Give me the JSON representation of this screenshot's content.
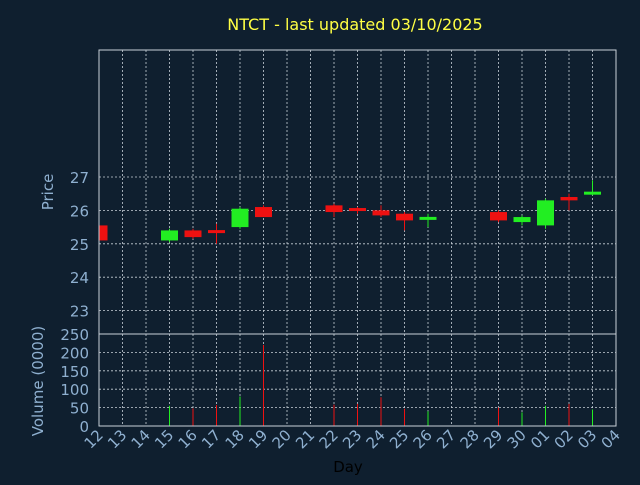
{
  "colors": {
    "background": "#0f1f2f",
    "title": "#ffff44",
    "axis_text": "#8fb0d0",
    "frame": "#c8d0d8",
    "grid": "#c8d0d8",
    "up": "#22ee22",
    "down": "#ee1111"
  },
  "chart_data": {
    "type": "candlestick",
    "title": "NTCT - last updated 03/10/2025",
    "xlabel": "Day",
    "price": {
      "ylabel": "Price",
      "ylim": [
        22.3,
        30.8
      ],
      "yticks": [
        23,
        24,
        25,
        26,
        27
      ]
    },
    "volume": {
      "ylabel": "Volume (0000)",
      "ylim": [
        0,
        250
      ],
      "yticks": [
        0,
        50,
        100,
        150,
        200,
        250
      ]
    },
    "x_tick_labels": [
      "12",
      "13",
      "14",
      "15",
      "16",
      "17",
      "18",
      "19",
      "20",
      "21",
      "22",
      "23",
      "24",
      "25",
      "26",
      "27",
      "28",
      "29",
      "30",
      "01",
      "02",
      "03",
      "04"
    ],
    "grid": true,
    "candles": [
      {
        "x": 0,
        "open": 25.55,
        "close": 25.1,
        "high": 25.6,
        "low": 25.1,
        "volume": 0
      },
      {
        "x": 3,
        "open": 25.1,
        "close": 25.4,
        "high": 25.45,
        "low": 25.05,
        "volume": 55
      },
      {
        "x": 4,
        "open": 25.4,
        "close": 25.2,
        "high": 25.45,
        "low": 25.15,
        "volume": 48
      },
      {
        "x": 5,
        "open": 25.38,
        "close": 25.35,
        "high": 25.6,
        "low": 25.0,
        "volume": 57
      },
      {
        "x": 6,
        "open": 25.5,
        "close": 26.05,
        "high": 26.1,
        "low": 25.45,
        "volume": 80
      },
      {
        "x": 7,
        "open": 26.1,
        "close": 25.8,
        "high": 26.15,
        "low": 25.8,
        "volume": 220
      },
      {
        "x": 10,
        "open": 26.15,
        "close": 25.95,
        "high": 26.2,
        "low": 25.8,
        "volume": 58
      },
      {
        "x": 11,
        "open": 26.05,
        "close": 26.0,
        "high": 26.1,
        "low": 25.9,
        "volume": 60
      },
      {
        "x": 12,
        "open": 26.0,
        "close": 25.85,
        "high": 26.15,
        "low": 25.8,
        "volume": 78
      },
      {
        "x": 13,
        "open": 25.9,
        "close": 25.7,
        "high": 25.95,
        "low": 25.4,
        "volume": 47
      },
      {
        "x": 14,
        "open": 25.72,
        "close": 25.8,
        "high": 25.9,
        "low": 25.5,
        "volume": 40
      },
      {
        "x": 17,
        "open": 25.95,
        "close": 25.7,
        "high": 26.0,
        "low": 25.65,
        "volume": 50
      },
      {
        "x": 18,
        "open": 25.65,
        "close": 25.8,
        "high": 25.85,
        "low": 25.55,
        "volume": 37
      },
      {
        "x": 19,
        "open": 25.55,
        "close": 26.3,
        "high": 26.35,
        "low": 25.45,
        "volume": 55
      },
      {
        "x": 20,
        "open": 26.4,
        "close": 26.3,
        "high": 26.5,
        "low": 26.0,
        "volume": 60
      },
      {
        "x": 21,
        "open": 26.48,
        "close": 26.55,
        "high": 26.9,
        "low": 26.45,
        "volume": 45
      }
    ]
  }
}
